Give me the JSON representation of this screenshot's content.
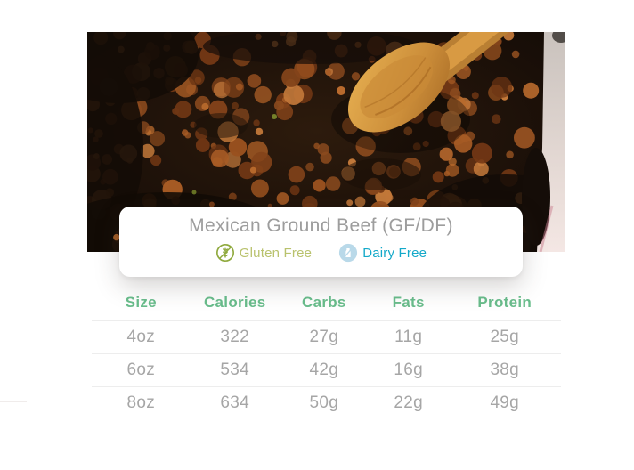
{
  "card": {
    "title": "Mexican Ground Beef (GF/DF)",
    "badges": [
      {
        "label": "Gluten Free",
        "icon": "gluten-free-icon",
        "text_color": "#b9c26d",
        "icon_color": "#8fa93d"
      },
      {
        "label": "Dairy Free",
        "icon": "dairy-free-icon",
        "text_color": "#14a9c9",
        "icon_color": "#b9d9e9"
      }
    ]
  },
  "photo": {
    "subject": "ground beef crumbles in a cast iron skillet with a wooden spatula"
  },
  "nutrition_table": {
    "columns": [
      "Size",
      "Calories",
      "Carbs",
      "Fats",
      "Protein"
    ],
    "rows": [
      [
        "4oz",
        "322",
        "27g",
        "11g",
        "25g"
      ],
      [
        "6oz",
        "534",
        "42g",
        "16g",
        "38g"
      ],
      [
        "8oz",
        "634",
        "50g",
        "22g",
        "49g"
      ]
    ]
  },
  "colors": {
    "header_green": "#69bd8c",
    "value_gray": "#a6a6a6",
    "title_gray": "#9d9d9d",
    "gluten_green": "#8fa93d",
    "dairy_blue": "#14a9c9",
    "dairy_icon_bg": "#b9d9e9",
    "divider": "#ededed"
  }
}
